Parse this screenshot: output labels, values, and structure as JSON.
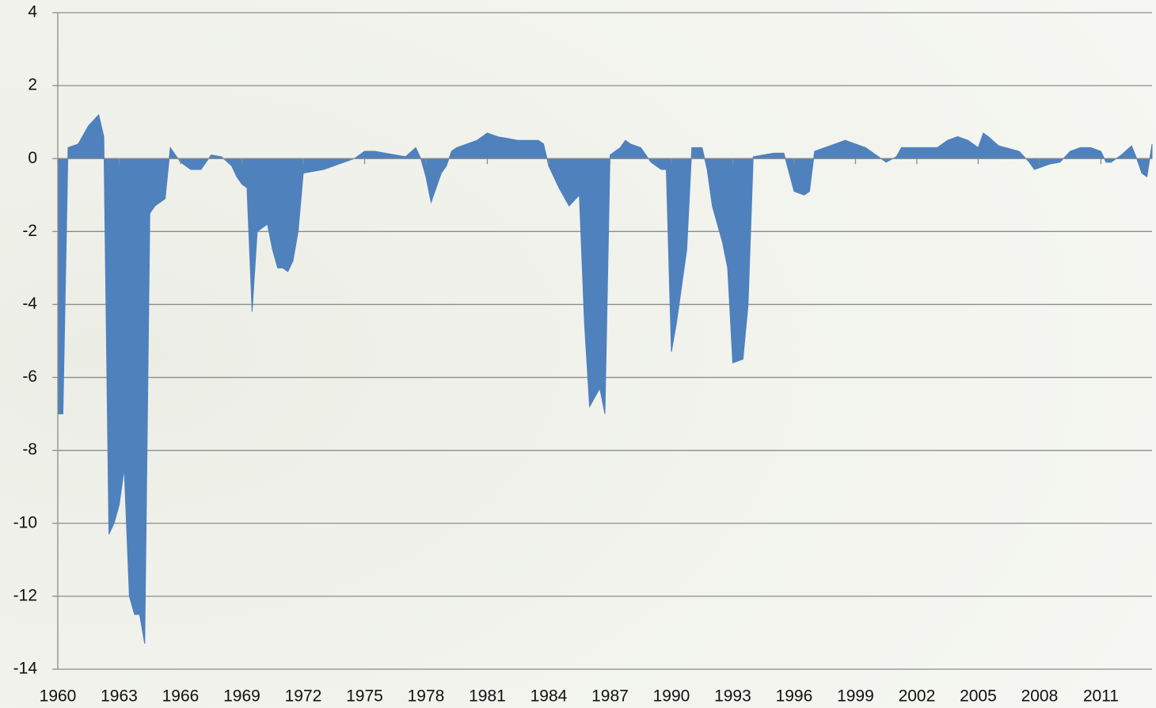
{
  "chart_data": {
    "type": "area",
    "color": "#4f81bd",
    "x": [
      1960,
      1960.25,
      1960.5,
      1961,
      1961.5,
      1962,
      1962.25,
      1962.5,
      1962.75,
      1963,
      1963.25,
      1963.5,
      1963.75,
      1964,
      1964.25,
      1964.5,
      1964.75,
      1965,
      1965.25,
      1965.5,
      1965.75,
      1966,
      1966.5,
      1967,
      1967.5,
      1968,
      1968.5,
      1968.75,
      1969,
      1969.25,
      1969.5,
      1969.75,
      1970,
      1970.25,
      1970.5,
      1970.75,
      1971,
      1971.25,
      1971.5,
      1971.75,
      1972,
      1973,
      1974,
      1974.5,
      1975,
      1975.5,
      1976,
      1976.5,
      1977,
      1977.5,
      1977.75,
      1978,
      1978.25,
      1978.5,
      1978.75,
      1979,
      1979.25,
      1979.5,
      1980,
      1980.5,
      1981,
      1981.5,
      1982,
      1982.5,
      1983,
      1983.5,
      1983.75,
      1984,
      1984.5,
      1985,
      1985.5,
      1985.75,
      1986,
      1986.5,
      1986.75,
      1987,
      1987.5,
      1987.75,
      1988,
      1988.5,
      1989,
      1989.5,
      1989.75,
      1990,
      1990.25,
      1990.5,
      1990.75,
      1991,
      1991.5,
      1991.75,
      1992,
      1992.5,
      1992.75,
      1993,
      1993.5,
      1993.75,
      1994,
      1995,
      1995.5,
      1996,
      1996.5,
      1996.75,
      1997,
      1998,
      1998.5,
      1999,
      1999.5,
      2000,
      2000.5,
      2001,
      2001.25,
      2002,
      2003,
      2003.5,
      2004,
      2004.5,
      2005,
      2005.25,
      2005.5,
      2006,
      2007,
      2007.5,
      2007.75,
      2008.5,
      2009,
      2009.5,
      2010,
      2010.5,
      2011,
      2011.25,
      2011.5,
      2012,
      2012.5,
      2012.75,
      2013,
      2013.25,
      2013.5
    ],
    "values": [
      -7,
      -7,
      0.3,
      0.4,
      0.9,
      1.2,
      0.6,
      -10.3,
      -10,
      -9.5,
      -8.5,
      -12,
      -12.5,
      -12.5,
      -13.3,
      -1.5,
      -1.3,
      -1.2,
      -1.1,
      0.3,
      0.1,
      -0.1,
      -0.3,
      -0.3,
      0.1,
      0.05,
      -0.2,
      -0.5,
      -0.7,
      -0.8,
      -4.2,
      -2,
      -1.9,
      -1.8,
      -2.5,
      -3,
      -3,
      -3.1,
      -2.8,
      -2,
      -0.4,
      -0.3,
      -0.1,
      0,
      0.2,
      0.2,
      0.15,
      0.1,
      0.05,
      0.3,
      0,
      -0.5,
      -1.2,
      -0.8,
      -0.4,
      -0.2,
      0.2,
      0.3,
      0.4,
      0.5,
      0.7,
      0.6,
      0.55,
      0.5,
      0.5,
      0.5,
      0.4,
      -0.2,
      -0.8,
      -1.3,
      -1,
      -4.5,
      -6.8,
      -6.3,
      -7,
      0.1,
      0.3,
      0.5,
      0.4,
      0.3,
      -0.1,
      -0.3,
      -0.3,
      -5.3,
      -4.5,
      -3.5,
      -2.5,
      0.3,
      0.3,
      -0.3,
      -1.3,
      -2.3,
      -3,
      -5.6,
      -5.5,
      -4,
      0.05,
      0.15,
      0.15,
      -0.9,
      -1,
      -0.9,
      0.2,
      0.4,
      0.5,
      0.4,
      0.3,
      0.1,
      -0.1,
      0.05,
      0.3,
      0.3,
      0.3,
      0.5,
      0.6,
      0.5,
      0.3,
      0.7,
      0.6,
      0.35,
      0.2,
      -0.1,
      -0.3,
      -0.15,
      -0.1,
      0.2,
      0.3,
      0.3,
      0.2,
      -0.1,
      -0.1,
      0.1,
      0.35,
      0,
      -0.4,
      -0.5,
      0.4
    ],
    "xlim": [
      1960,
      2013.5
    ],
    "xticks": [
      1960,
      1963,
      1966,
      1969,
      1972,
      1975,
      1978,
      1981,
      1984,
      1987,
      1990,
      1993,
      1996,
      1999,
      2002,
      2005,
      2008,
      2011
    ],
    "ylim": [
      -14,
      4
    ],
    "yticks": [
      -14,
      -12,
      -10,
      -8,
      -6,
      -4,
      -2,
      0,
      2,
      4
    ],
    "grid": true
  }
}
